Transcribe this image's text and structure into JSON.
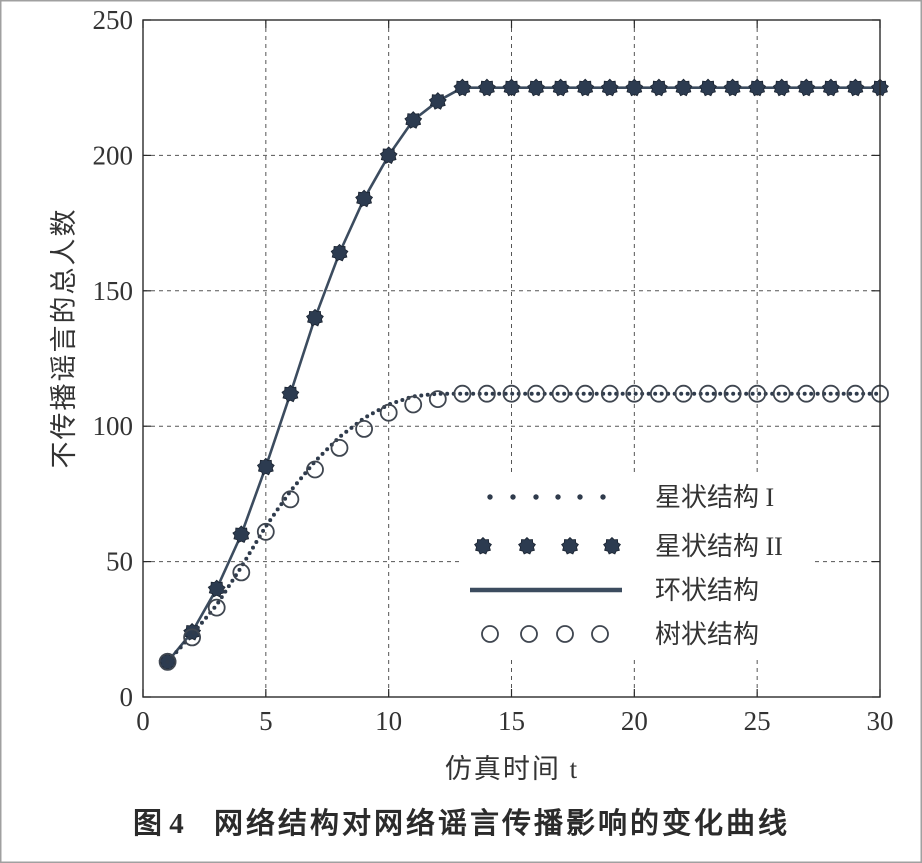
{
  "chart_data": {
    "type": "line",
    "caption_label": "图 4",
    "caption_text": "网络结构对网络谣言传播影响的变化曲线",
    "xlabel": "仿真时间 t",
    "ylabel": "不传播谣言的总人数",
    "xlim": [
      0,
      30
    ],
    "ylim": [
      0,
      250
    ],
    "x_ticks": [
      0,
      5,
      10,
      15,
      20,
      25,
      30
    ],
    "y_ticks": [
      0,
      50,
      100,
      150,
      200,
      250
    ],
    "grid": true,
    "legend_position": "lower-right",
    "x": [
      1,
      2,
      3,
      4,
      5,
      6,
      7,
      8,
      9,
      10,
      11,
      12,
      13,
      14,
      15,
      16,
      17,
      18,
      19,
      20,
      21,
      22,
      23,
      24,
      25,
      26,
      27,
      28,
      29,
      30
    ],
    "series": [
      {
        "name": "星状结构 I",
        "line": "dotted",
        "marker": "none",
        "color": "#2f3b4c",
        "values": [
          13,
          23,
          34,
          48,
          63,
          76,
          87,
          96,
          103,
          108,
          111,
          112,
          112,
          112,
          112,
          112,
          112,
          112,
          112,
          112,
          112,
          112,
          112,
          112,
          112,
          112,
          112,
          112,
          112,
          112
        ]
      },
      {
        "name": "星状结构 II",
        "line": "none",
        "marker": "filled",
        "color": "#2c3b50",
        "values": [
          13,
          24,
          40,
          60,
          85,
          112,
          140,
          164,
          184,
          200,
          213,
          220,
          225,
          225,
          225,
          225,
          225,
          225,
          225,
          225,
          225,
          225,
          225,
          225,
          225,
          225,
          225,
          225,
          225,
          225
        ]
      },
      {
        "name": "环状结构",
        "line": "solid",
        "marker": "none",
        "color": "#3c4c5f",
        "values": [
          13,
          24,
          40,
          60,
          85,
          112,
          140,
          164,
          184,
          200,
          213,
          220,
          225,
          225,
          225,
          225,
          225,
          225,
          225,
          225,
          225,
          225,
          225,
          225,
          225,
          225,
          225,
          225,
          225,
          225
        ]
      },
      {
        "name": "树状结构",
        "line": "none",
        "marker": "open-circle",
        "color": "#3f4650",
        "values": [
          13,
          22,
          33,
          46,
          61,
          73,
          84,
          92,
          99,
          105,
          108,
          110,
          112,
          112,
          112,
          112,
          112,
          112,
          112,
          112,
          112,
          112,
          112,
          112,
          112,
          112,
          112,
          112,
          112,
          112
        ]
      }
    ]
  }
}
